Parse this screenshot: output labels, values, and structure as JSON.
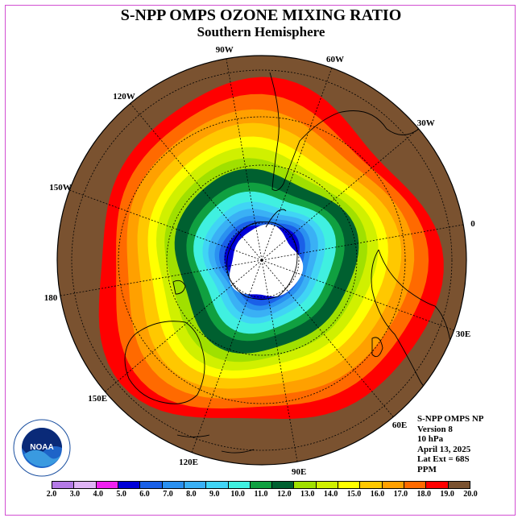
{
  "title": "S-NPP OMPS OZONE MIXING RATIO",
  "subtitle": "Southern Hemisphere",
  "logo": {
    "text": "NOAA",
    "icon": "noaa-logo"
  },
  "info": {
    "lines": [
      "S-NPP OMPS NP",
      "Version 8",
      "10 hPa",
      "April 13, 2025",
      "Lat Ext = 68S",
      "PPM"
    ]
  },
  "longitude_labels": [
    "90W",
    "60W",
    "30W",
    "0",
    "30E",
    "60E",
    "90E",
    "120E",
    "150E",
    "180",
    "150W",
    "120W"
  ],
  "colorbar": {
    "ticks": [
      "2.0",
      "3.0",
      "4.0",
      "5.0",
      "6.0",
      "7.0",
      "8.0",
      "9.0",
      "10.0",
      "11.0",
      "12.0",
      "13.0",
      "14.0",
      "15.0",
      "16.0",
      "17.0",
      "18.0",
      "19.0",
      "20.0"
    ],
    "colors": [
      "#b47ae6",
      "#e0b4f5",
      "#f020f0",
      "#0000d8",
      "#1a60e8",
      "#2a90f0",
      "#3ab0f5",
      "#40d4f5",
      "#40f0e0",
      "#10a040",
      "#006030",
      "#a0e000",
      "#d0f000",
      "#ffff00",
      "#ffc800",
      "#ffa000",
      "#ff6a00",
      "#ff0000",
      "#7a5230"
    ]
  },
  "chart_data": {
    "type": "heatmap",
    "projection": "south-polar-stereographic",
    "variable": "ozone mixing ratio",
    "units": "PPM",
    "pressure_level": "10 hPa",
    "date": "April 13, 2025",
    "lat_extent": "68S",
    "value_range": [
      2.0,
      20.0
    ],
    "contour_interval": 1.0,
    "bands": [
      {
        "level": "< 12",
        "region": "innermost near-pole ring (white = no data)"
      },
      {
        "level": "12-13",
        "region": "dark green ring ~70-75S"
      },
      {
        "level": "13-16",
        "region": "green-yellow ring ~55-65S"
      },
      {
        "level": "16-19",
        "region": "orange-red ring ~40-55S"
      },
      {
        "level": "> 19",
        "region": "brown outer ring equatorward of ~40S"
      }
    ]
  }
}
